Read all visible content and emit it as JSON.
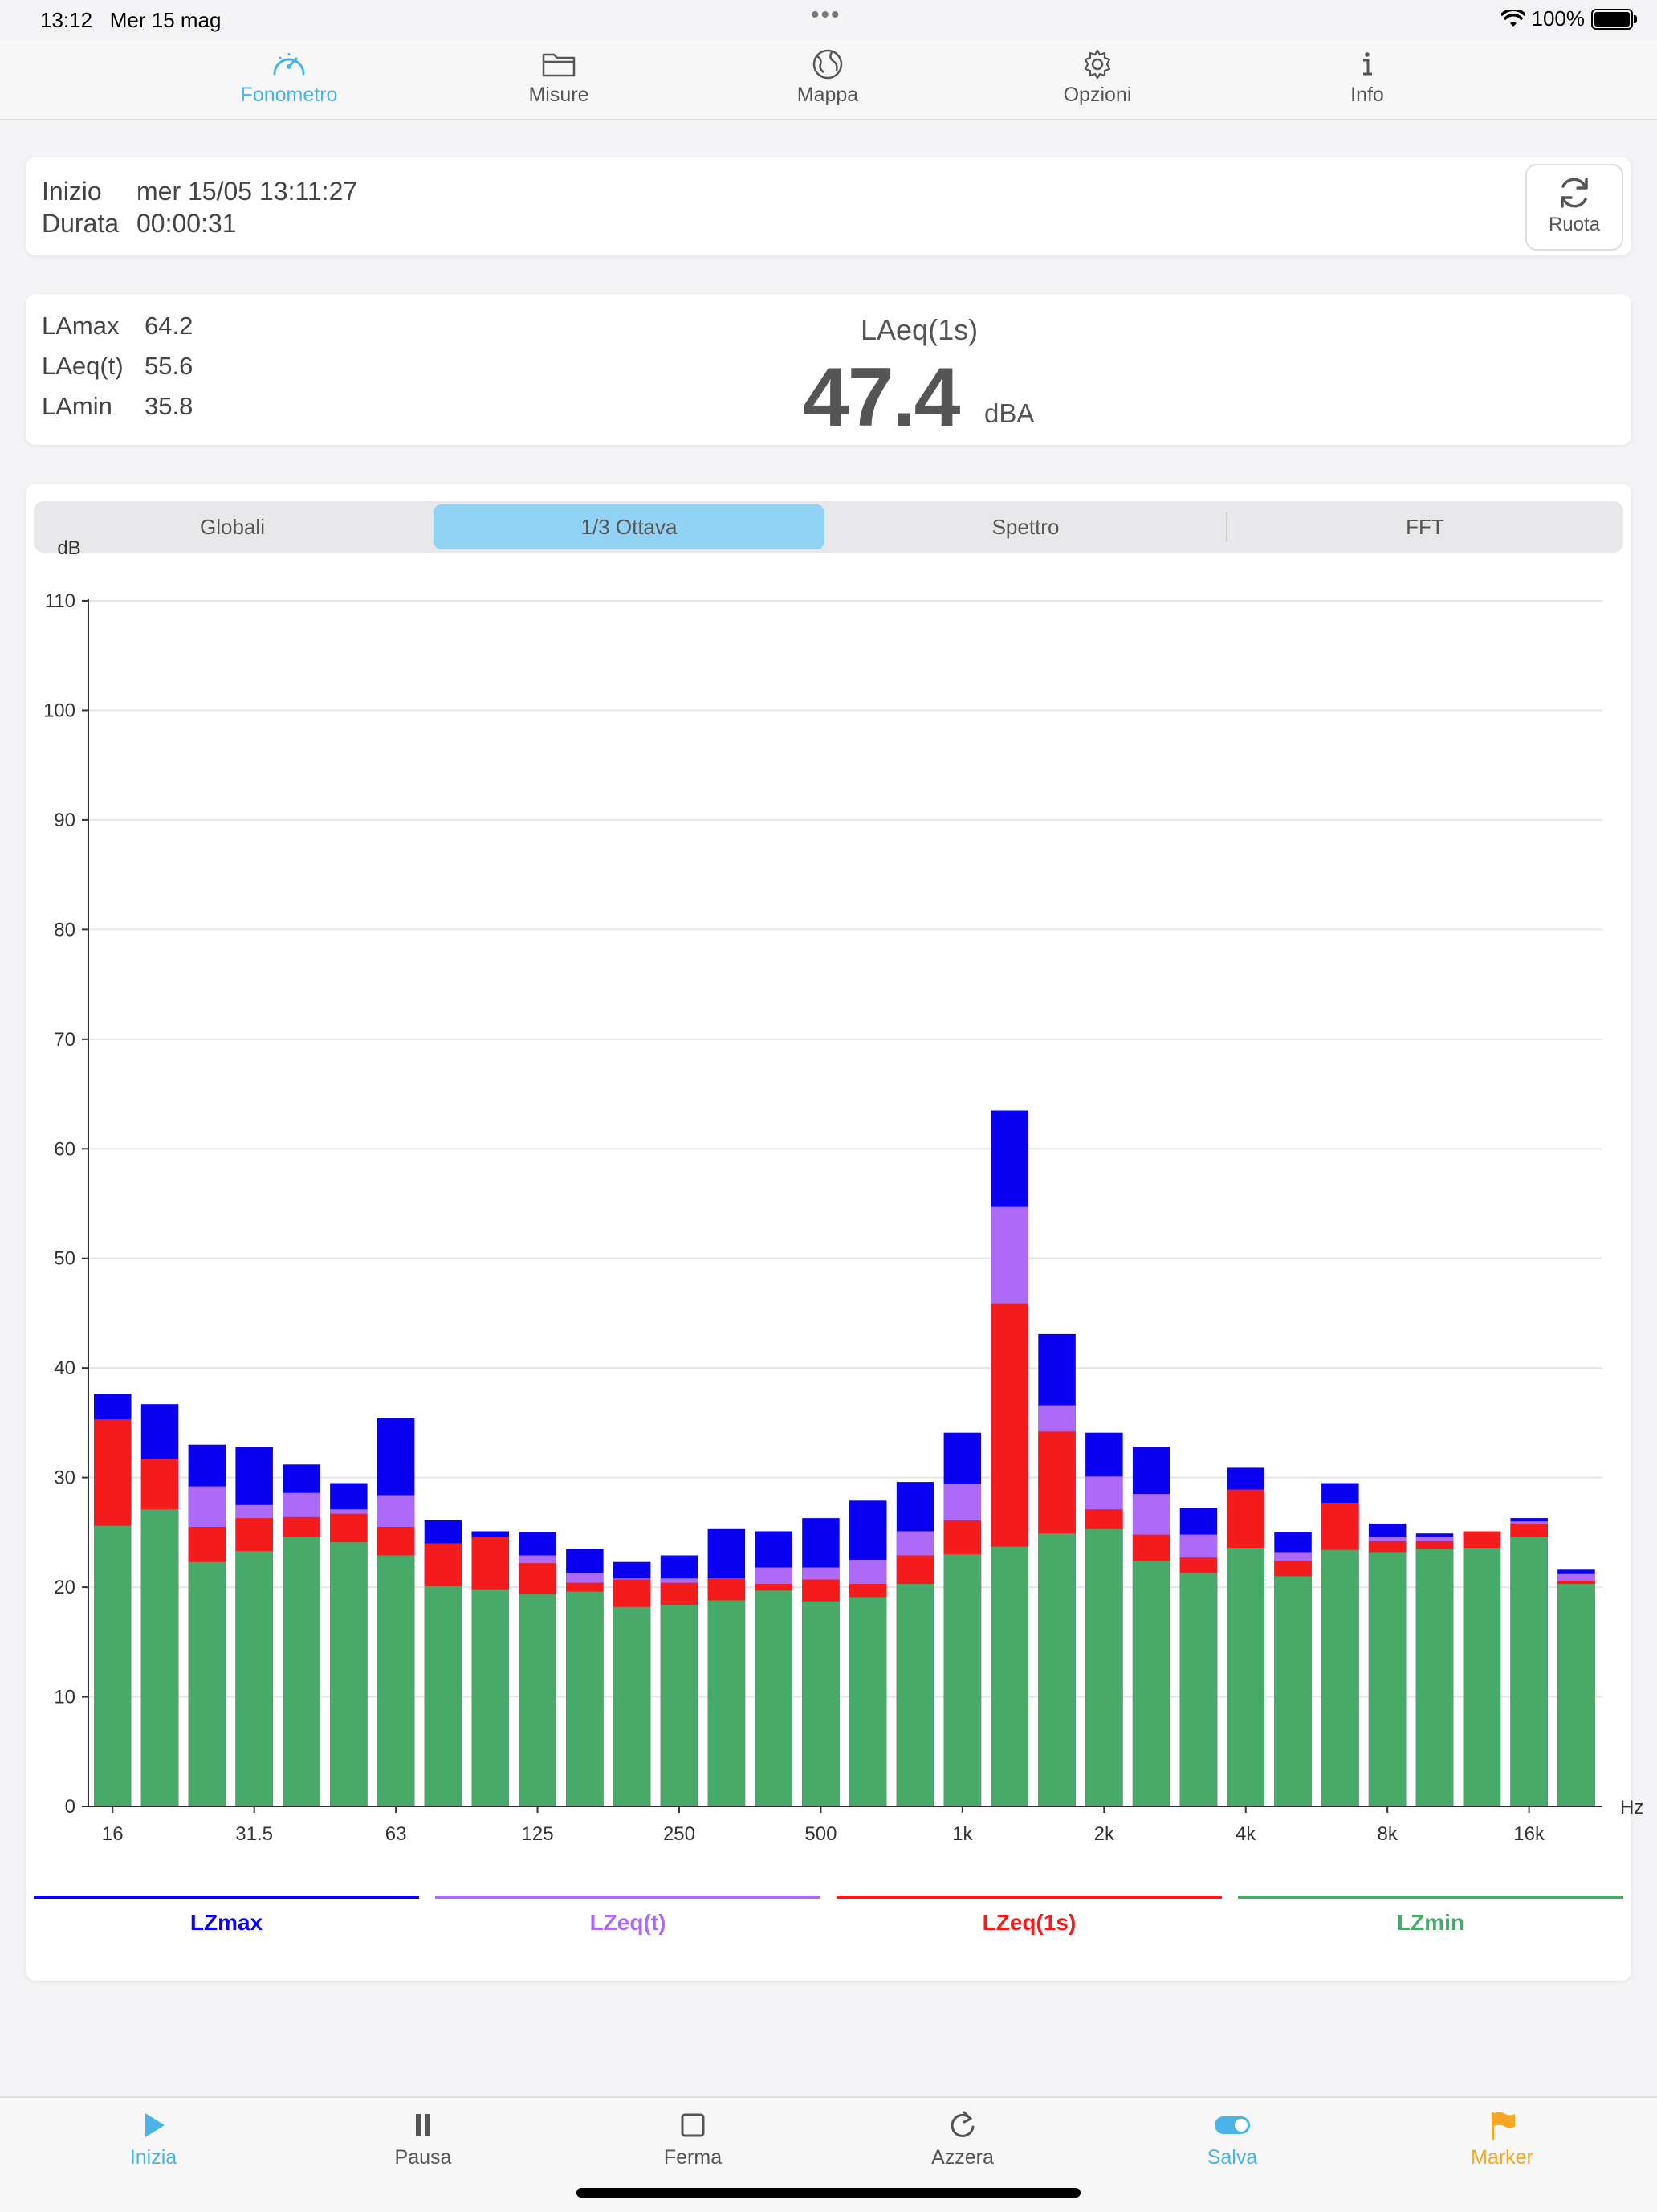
{
  "status": {
    "time": "13:12",
    "date": "Mer 15 mag",
    "battery": "100%"
  },
  "colors": {
    "accent": "#4ab3ea",
    "lzmax": "#0a00f2",
    "lzeq_t": "#ad6af9",
    "lzeq_1s": "#f31b1b",
    "lzmin": "#47aa68",
    "marker": "#f5a623"
  },
  "top_tabs": [
    {
      "label": "Fonometro",
      "icon": "speedometer-icon"
    },
    {
      "label": "Misure",
      "icon": "folder-icon"
    },
    {
      "label": "Mappa",
      "icon": "globe-icon"
    },
    {
      "label": "Opzioni",
      "icon": "gear-icon"
    },
    {
      "label": "Info",
      "icon": "info-icon"
    }
  ],
  "session": {
    "start_label": "Inizio",
    "start_value": "mer 15/05 13:11:27",
    "duration_label": "Durata",
    "duration_value": "00:00:31",
    "rotate_label": "Ruota"
  },
  "levels": {
    "lamax_label": "LAmax",
    "lamax_value": "64.2",
    "laeq_t_label": "LAeq(t)",
    "laeq_t_value": "55.6",
    "lamin_label": "LAmin",
    "lamin_value": "35.8",
    "main_label": "LAeq(1s)",
    "main_value": "47.4",
    "main_unit": "dBA"
  },
  "chart_tabs": [
    "Globali",
    "1/3 Ottava",
    "Spettro",
    "FFT"
  ],
  "chart_tabs_active": 1,
  "chart_data": {
    "type": "bar",
    "stacked_overlay": true,
    "ylabel": "dB",
    "xlabel": "Hz",
    "ylim": [
      0,
      110
    ],
    "yticks": [
      0,
      10,
      20,
      30,
      40,
      50,
      60,
      70,
      80,
      90,
      100,
      110
    ],
    "grid": true,
    "categories": [
      "16",
      "20",
      "25",
      "31.5",
      "40",
      "50",
      "63",
      "80",
      "100",
      "125",
      "160",
      "200",
      "250",
      "315",
      "400",
      "500",
      "630",
      "800",
      "1k",
      "1.25k",
      "1.6k",
      "2k",
      "2.5k",
      "3.15k",
      "4k",
      "5k",
      "6.3k",
      "8k",
      "10k",
      "12.5k",
      "16k",
      "20k"
    ],
    "xtick_labels": {
      "0": "16",
      "3": "31.5",
      "6": "63",
      "9": "125",
      "12": "250",
      "15": "500",
      "18": "1k",
      "21": "2k",
      "24": "4k",
      "27": "8k",
      "30": "16k"
    },
    "series": [
      {
        "name": "LZmax",
        "values": [
          37.6,
          36.7,
          33.0,
          32.8,
          31.2,
          29.5,
          35.4,
          26.1,
          25.1,
          25.0,
          23.5,
          22.3,
          22.9,
          25.3,
          25.1,
          26.3,
          27.9,
          29.6,
          34.1,
          63.5,
          43.1,
          34.1,
          32.8,
          27.2,
          30.9,
          25.0,
          29.5,
          25.8,
          24.9,
          25.1,
          26.3,
          21.6
        ]
      },
      {
        "name": "LZeq(t)",
        "values": [
          35.3,
          31.7,
          29.2,
          27.5,
          28.6,
          27.1,
          28.4,
          24.0,
          24.6,
          22.9,
          21.3,
          20.8,
          20.8,
          20.8,
          21.8,
          21.8,
          22.5,
          25.1,
          29.4,
          54.7,
          36.6,
          30.1,
          28.5,
          24.8,
          28.9,
          23.2,
          27.7,
          24.6,
          24.6,
          25.1,
          26.0,
          21.2
        ]
      },
      {
        "name": "LZeq(1s)",
        "values": [
          35.3,
          31.7,
          25.5,
          26.3,
          26.4,
          26.7,
          25.5,
          24.0,
          24.6,
          22.2,
          20.4,
          20.7,
          20.4,
          20.8,
          20.3,
          20.7,
          20.3,
          22.9,
          26.1,
          45.9,
          34.2,
          27.1,
          24.8,
          22.7,
          28.9,
          22.4,
          27.7,
          24.2,
          24.2,
          25.1,
          25.8,
          20.6
        ]
      },
      {
        "name": "LZmin",
        "values": [
          25.6,
          27.1,
          22.3,
          23.3,
          24.6,
          24.1,
          22.9,
          20.1,
          19.8,
          19.4,
          19.6,
          18.2,
          18.4,
          18.8,
          19.7,
          18.7,
          19.1,
          20.3,
          23.0,
          23.7,
          24.9,
          25.3,
          22.4,
          21.3,
          23.6,
          21.0,
          23.4,
          23.2,
          23.5,
          23.6,
          24.6,
          20.3
        ]
      }
    ]
  },
  "legend": [
    "LZmax",
    "LZeq(t)",
    "LZeq(1s)",
    "LZmin"
  ],
  "bottom_tabs": [
    {
      "label": "Inizia",
      "icon": "play-icon"
    },
    {
      "label": "Pausa",
      "icon": "pause-icon"
    },
    {
      "label": "Ferma",
      "icon": "stop-icon"
    },
    {
      "label": "Azzera",
      "icon": "reset-icon"
    },
    {
      "label": "Salva",
      "icon": "toggle-icon"
    },
    {
      "label": "Marker",
      "icon": "flag-icon"
    }
  ]
}
